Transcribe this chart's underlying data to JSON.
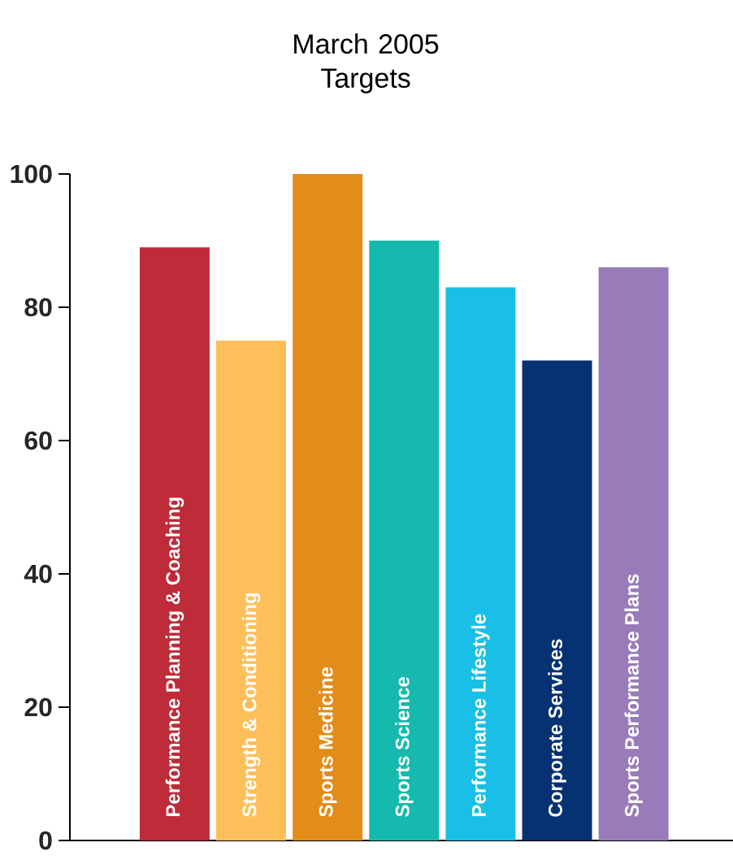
{
  "chart_data": {
    "type": "bar",
    "title": "March 2005 Targets",
    "categories": [
      "Performance Planning & Coaching",
      "Strength & Conditioning",
      "Sports Medicine",
      "Sports Science",
      "Performance Lifestyle",
      "Corporate Services",
      "Sports Performance Plans"
    ],
    "values": [
      89,
      75,
      100,
      90,
      83,
      72,
      86
    ],
    "colors": [
      "#be2b39",
      "#fdbf5a",
      "#e28c19",
      "#15b9ae",
      "#19bfe7",
      "#063173",
      "#987bb8"
    ],
    "ylim": [
      0,
      100
    ],
    "yticks": [
      0,
      20,
      40,
      60,
      80,
      100
    ],
    "tick_labels": "y",
    "grid": false
  }
}
